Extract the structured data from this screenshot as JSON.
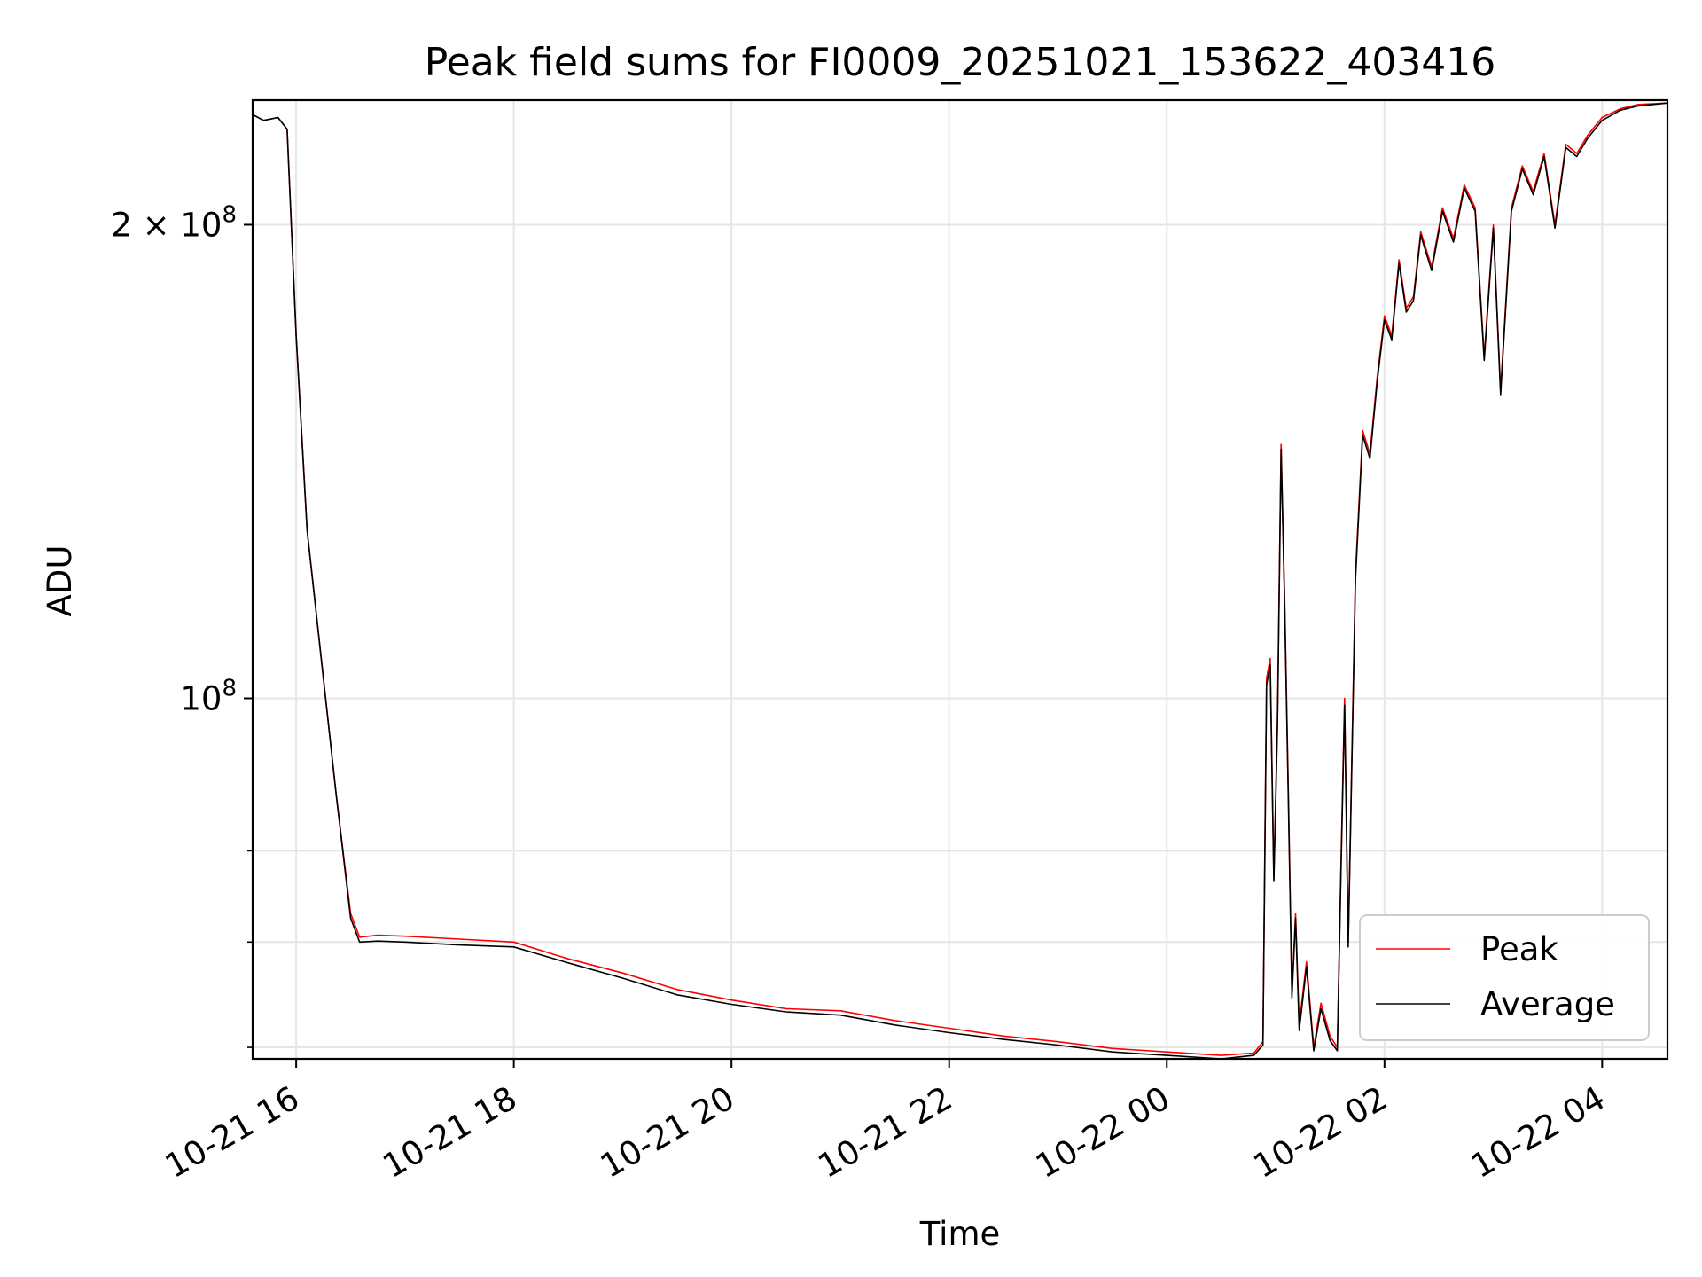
{
  "chart_data": {
    "type": "line",
    "title": "Peak field sums for FI0009_20251021_153622_403416",
    "xlabel": "Time",
    "ylabel": "ADU",
    "y_scale": "log",
    "x_ticks": [
      "10-21 16",
      "10-21 18",
      "10-21 20",
      "10-21 22",
      "10-22 00",
      "10-22 02",
      "10-22 04"
    ],
    "y_ticks": [
      {
        "value": 100000000,
        "label_base": "10",
        "label_exp": "8",
        "label_coef": ""
      },
      {
        "value": 200000000,
        "label_base": "10",
        "label_exp": "8",
        "label_coef": "2 × "
      }
    ],
    "xlim": [
      "2025-10-21 15:36",
      "2025-10-22 04:36"
    ],
    "ylim": [
      59000000,
      240000000
    ],
    "grid": true,
    "legend_position": "lower-right",
    "series": [
      {
        "name": "Peak",
        "color": "#ff0000",
        "points": [
          [
            "2025-10-21 15:36",
            235000000
          ],
          [
            "2025-10-21 15:42",
            233000000
          ],
          [
            "2025-10-21 15:50",
            234000000
          ],
          [
            "2025-10-21 15:55",
            230000000
          ],
          [
            "2025-10-21 16:00",
            170000000
          ],
          [
            "2025-10-21 16:06",
            128000000
          ],
          [
            "2025-10-21 16:15",
            103000000
          ],
          [
            "2025-10-21 16:22",
            87000000
          ],
          [
            "2025-10-21 16:30",
            73000000
          ],
          [
            "2025-10-21 16:35",
            70500000
          ],
          [
            "2025-10-21 16:45",
            70700000
          ],
          [
            "2025-10-21 17:00",
            70600000
          ],
          [
            "2025-10-21 17:30",
            70300000
          ],
          [
            "2025-10-21 18:00",
            70000000
          ],
          [
            "2025-10-21 18:30",
            68300000
          ],
          [
            "2025-10-21 19:00",
            66900000
          ],
          [
            "2025-10-21 19:30",
            65300000
          ],
          [
            "2025-10-21 20:00",
            64300000
          ],
          [
            "2025-10-21 20:30",
            63500000
          ],
          [
            "2025-10-21 21:00",
            63300000
          ],
          [
            "2025-10-21 21:30",
            62400000
          ],
          [
            "2025-10-21 22:00",
            61700000
          ],
          [
            "2025-10-21 22:30",
            61000000
          ],
          [
            "2025-10-21 23:00",
            60500000
          ],
          [
            "2025-10-21 23:30",
            59900000
          ],
          [
            "2025-10-22 00:00",
            59600000
          ],
          [
            "2025-10-22 00:30",
            59300000
          ],
          [
            "2025-10-22 00:48",
            59500000
          ],
          [
            "2025-10-22 00:53",
            60500000
          ],
          [
            "2025-10-22 00:55",
            103000000
          ],
          [
            "2025-10-22 00:57",
            106000000
          ],
          [
            "2025-10-22 00:59",
            77000000
          ],
          [
            "2025-10-22 01:01",
            97000000
          ],
          [
            "2025-10-22 01:03",
            145000000
          ],
          [
            "2025-10-22 01:05",
            115000000
          ],
          [
            "2025-10-22 01:07",
            87000000
          ],
          [
            "2025-10-22 01:09",
            65000000
          ],
          [
            "2025-10-22 01:11",
            73000000
          ],
          [
            "2025-10-22 01:13",
            62000000
          ],
          [
            "2025-10-22 01:17",
            68000000
          ],
          [
            "2025-10-22 01:21",
            60000000
          ],
          [
            "2025-10-22 01:25",
            64000000
          ],
          [
            "2025-10-22 01:30",
            61000000
          ],
          [
            "2025-10-22 01:34",
            60000000
          ],
          [
            "2025-10-22 01:36",
            78000000
          ],
          [
            "2025-10-22 01:38",
            100000000
          ],
          [
            "2025-10-22 01:40",
            70000000
          ],
          [
            "2025-10-22 01:44",
            120000000
          ],
          [
            "2025-10-22 01:48",
            148000000
          ],
          [
            "2025-10-22 01:52",
            143000000
          ],
          [
            "2025-10-22 01:56",
            160000000
          ],
          [
            "2025-10-22 02:00",
            175000000
          ],
          [
            "2025-10-22 02:04",
            170000000
          ],
          [
            "2025-10-22 02:08",
            190000000
          ],
          [
            "2025-10-22 02:12",
            177000000
          ],
          [
            "2025-10-22 02:16",
            180000000
          ],
          [
            "2025-10-22 02:20",
            198000000
          ],
          [
            "2025-10-22 02:26",
            188000000
          ],
          [
            "2025-10-22 02:32",
            205000000
          ],
          [
            "2025-10-22 02:38",
            196000000
          ],
          [
            "2025-10-22 02:44",
            212000000
          ],
          [
            "2025-10-22 02:50",
            205000000
          ],
          [
            "2025-10-22 02:55",
            165000000
          ],
          [
            "2025-10-22 03:00",
            200000000
          ],
          [
            "2025-10-22 03:04",
            157000000
          ],
          [
            "2025-10-22 03:10",
            205000000
          ],
          [
            "2025-10-22 03:16",
            218000000
          ],
          [
            "2025-10-22 03:22",
            210000000
          ],
          [
            "2025-10-22 03:28",
            222000000
          ],
          [
            "2025-10-22 03:34",
            200000000
          ],
          [
            "2025-10-22 03:40",
            225000000
          ],
          [
            "2025-10-22 03:46",
            222000000
          ],
          [
            "2025-10-22 03:52",
            228000000
          ],
          [
            "2025-10-22 04:00",
            234000000
          ],
          [
            "2025-10-22 04:10",
            237000000
          ],
          [
            "2025-10-22 04:20",
            238500000
          ],
          [
            "2025-10-22 04:36",
            239000000
          ]
        ]
      },
      {
        "name": "Average",
        "color": "#000000",
        "points": [
          [
            "2025-10-21 15:36",
            235000000
          ],
          [
            "2025-10-21 15:42",
            233000000
          ],
          [
            "2025-10-21 15:50",
            234000000
          ],
          [
            "2025-10-21 15:55",
            230000000
          ],
          [
            "2025-10-21 16:00",
            170000000
          ],
          [
            "2025-10-21 16:06",
            128000000
          ],
          [
            "2025-10-21 16:15",
            103000000
          ],
          [
            "2025-10-21 16:22",
            87000000
          ],
          [
            "2025-10-21 16:30",
            72500000
          ],
          [
            "2025-10-21 16:35",
            70000000
          ],
          [
            "2025-10-21 16:45",
            70100000
          ],
          [
            "2025-10-21 17:00",
            70000000
          ],
          [
            "2025-10-21 17:30",
            69700000
          ],
          [
            "2025-10-21 18:00",
            69500000
          ],
          [
            "2025-10-21 18:30",
            67900000
          ],
          [
            "2025-10-21 19:00",
            66400000
          ],
          [
            "2025-10-21 19:30",
            64800000
          ],
          [
            "2025-10-21 20:00",
            63900000
          ],
          [
            "2025-10-21 20:30",
            63200000
          ],
          [
            "2025-10-21 21:00",
            62900000
          ],
          [
            "2025-10-21 21:30",
            62000000
          ],
          [
            "2025-10-21 22:00",
            61300000
          ],
          [
            "2025-10-21 22:30",
            60700000
          ],
          [
            "2025-10-21 23:00",
            60200000
          ],
          [
            "2025-10-21 23:30",
            59600000
          ],
          [
            "2025-10-22 00:00",
            59300000
          ],
          [
            "2025-10-22 00:30",
            59000000
          ],
          [
            "2025-10-22 00:48",
            59300000
          ],
          [
            "2025-10-22 00:53",
            60200000
          ],
          [
            "2025-10-22 00:55",
            102000000
          ],
          [
            "2025-10-22 00:57",
            105000000
          ],
          [
            "2025-10-22 00:59",
            76500000
          ],
          [
            "2025-10-22 01:01",
            96000000
          ],
          [
            "2025-10-22 01:03",
            144000000
          ],
          [
            "2025-10-22 01:05",
            114000000
          ],
          [
            "2025-10-22 01:07",
            86000000
          ],
          [
            "2025-10-22 01:09",
            64500000
          ],
          [
            "2025-10-22 01:11",
            72500000
          ],
          [
            "2025-10-22 01:13",
            61500000
          ],
          [
            "2025-10-22 01:17",
            67500000
          ],
          [
            "2025-10-22 01:21",
            59700000
          ],
          [
            "2025-10-22 01:25",
            63500000
          ],
          [
            "2025-10-22 01:30",
            60600000
          ],
          [
            "2025-10-22 01:34",
            59700000
          ],
          [
            "2025-10-22 01:36",
            77500000
          ],
          [
            "2025-10-22 01:38",
            99000000
          ],
          [
            "2025-10-22 01:40",
            69500000
          ],
          [
            "2025-10-22 01:44",
            119000000
          ],
          [
            "2025-10-22 01:48",
            147000000
          ],
          [
            "2025-10-22 01:52",
            142000000
          ],
          [
            "2025-10-22 01:56",
            159000000
          ],
          [
            "2025-10-22 02:00",
            174000000
          ],
          [
            "2025-10-22 02:04",
            169000000
          ],
          [
            "2025-10-22 02:08",
            189000000
          ],
          [
            "2025-10-22 02:12",
            176000000
          ],
          [
            "2025-10-22 02:16",
            179000000
          ],
          [
            "2025-10-22 02:20",
            197000000
          ],
          [
            "2025-10-22 02:26",
            187000000
          ],
          [
            "2025-10-22 02:32",
            204000000
          ],
          [
            "2025-10-22 02:38",
            195000000
          ],
          [
            "2025-10-22 02:44",
            211000000
          ],
          [
            "2025-10-22 02:50",
            204000000
          ],
          [
            "2025-10-22 02:55",
            164000000
          ],
          [
            "2025-10-22 03:00",
            199000000
          ],
          [
            "2025-10-22 03:04",
            156000000
          ],
          [
            "2025-10-22 03:10",
            204000000
          ],
          [
            "2025-10-22 03:16",
            217000000
          ],
          [
            "2025-10-22 03:22",
            209000000
          ],
          [
            "2025-10-22 03:28",
            221000000
          ],
          [
            "2025-10-22 03:34",
            199000000
          ],
          [
            "2025-10-22 03:40",
            224000000
          ],
          [
            "2025-10-22 03:46",
            221000000
          ],
          [
            "2025-10-22 03:52",
            227000000
          ],
          [
            "2025-10-22 04:00",
            233000000
          ],
          [
            "2025-10-22 04:10",
            236500000
          ],
          [
            "2025-10-22 04:20",
            238000000
          ],
          [
            "2025-10-22 04:36",
            239000000
          ]
        ]
      }
    ]
  }
}
